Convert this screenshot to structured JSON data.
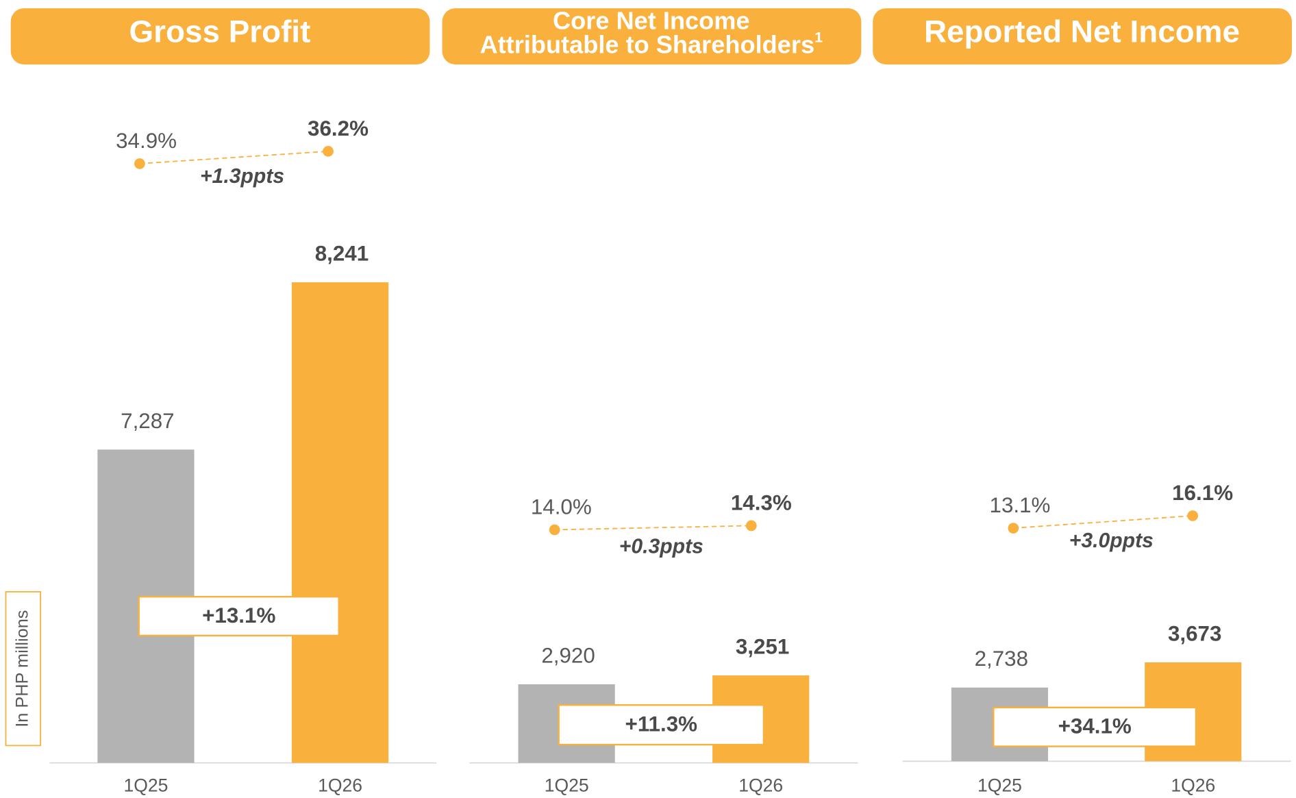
{
  "chart_data": [
    {
      "type": "bar",
      "title": [
        "Gross Profit"
      ],
      "categories": [
        "1Q25",
        "1Q26"
      ],
      "values": [
        7287,
        8241
      ],
      "value_labels": [
        "7,287",
        "8,241"
      ],
      "colors": [
        "#b3b3b3",
        "#f9b03d"
      ],
      "ylim": [
        5500,
        8800
      ],
      "margins": {
        "values": [
          34.9,
          36.2
        ],
        "value_labels": [
          "34.9%",
          "36.2%"
        ],
        "change": "+1.3ppts",
        "color": "#f9b03d"
      },
      "growth": "+13.1%",
      "y_axis_label": "In PHP millions"
    },
    {
      "type": "bar",
      "title": [
        "Core Net Income",
        "Attributable to Shareholders"
      ],
      "footnote_marker": "1",
      "categories": [
        "1Q25",
        "1Q26"
      ],
      "values": [
        2920,
        3251
      ],
      "value_labels": [
        "2,920",
        "3,251"
      ],
      "colors": [
        "#b3b3b3",
        "#f9b03d"
      ],
      "ylim": [
        0,
        21500
      ],
      "margins": {
        "values": [
          14.0,
          14.3
        ],
        "value_labels": [
          "14.0%",
          "14.3%"
        ],
        "change": "+0.3ppts",
        "color": "#f9b03d"
      },
      "growth": "+11.3%"
    },
    {
      "type": "bar",
      "title": [
        "Reported Net Income"
      ],
      "categories": [
        "1Q25",
        "1Q26"
      ],
      "values": [
        2738,
        3673
      ],
      "value_labels": [
        "2,738",
        "3,673"
      ],
      "colors": [
        "#b3b3b3",
        "#f9b03d"
      ],
      "ylim": [
        0,
        21500
      ],
      "margins": {
        "values": [
          13.1,
          16.1
        ],
        "value_labels": [
          "13.1%",
          "16.1%"
        ],
        "change": "+3.0ppts",
        "color": "#f9b03d"
      },
      "growth": "+34.1%"
    }
  ]
}
